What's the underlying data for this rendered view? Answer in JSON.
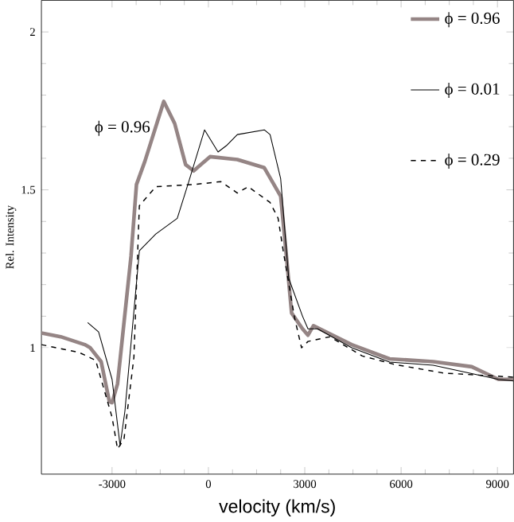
{
  "chart_data": {
    "type": "line",
    "xlabel": "velocity (km/s)",
    "ylabel": "Rel. Intensity",
    "xlim": [
      -5200,
      9500
    ],
    "ylim": [
      0.6,
      2.1
    ],
    "xticks": [
      -3000,
      0,
      3000,
      6000,
      9000
    ],
    "yticks": [
      1,
      1.5,
      2
    ],
    "legend": "top right",
    "annotations": [
      "ϕ = 0.96"
    ],
    "series": [
      {
        "name": "ϕ = 0.96",
        "color": "#958585",
        "line_style": "solid",
        "x": [
          -5200,
          -4600,
          -3850,
          -3680,
          -3340,
          -3085,
          -3000,
          -2830,
          -2410,
          -2240,
          -1980,
          -1390,
          -1050,
          -710,
          -460,
          50,
          900,
          1740,
          2250,
          2420,
          2590,
          2930,
          3100,
          3270,
          4460,
          5640,
          7000,
          8200,
          9030,
          9500
        ],
        "values": [
          1.047,
          1.035,
          1.01,
          1.0,
          0.956,
          0.83,
          0.826,
          0.886,
          1.29,
          1.517,
          1.59,
          1.78,
          1.71,
          1.58,
          1.56,
          1.605,
          1.596,
          1.57,
          1.48,
          1.3,
          1.11,
          1.06,
          1.04,
          1.07,
          1.01,
          0.965,
          0.956,
          0.94,
          0.9,
          0.9
        ]
      },
      {
        "name": "ϕ = 0.01",
        "color": "#000000",
        "line_style": "solid",
        "x": [
          -3760,
          -3420,
          -3000,
          -2750,
          -2600,
          -2150,
          -1640,
          -970,
          -630,
          -120,
          300,
          560,
          900,
          1740,
          1920,
          2250,
          2500,
          2930,
          3100,
          3400,
          4460,
          5640,
          7000,
          9030,
          9500
        ],
        "values": [
          1.08,
          1.05,
          0.9,
          0.69,
          0.8,
          1.307,
          1.36,
          1.41,
          1.52,
          1.69,
          1.62,
          1.64,
          1.675,
          1.69,
          1.675,
          1.535,
          1.22,
          1.1,
          1.06,
          1.06,
          1.0,
          0.955,
          0.945,
          0.9,
          0.895
        ]
      },
      {
        "name": "ϕ = 0.29",
        "color": "#000000",
        "line_style": "dashed",
        "x": [
          -5200,
          -4020,
          -3510,
          -3000,
          -2830,
          -2630,
          -2320,
          -2150,
          -1640,
          -460,
          390,
          900,
          1240,
          1920,
          2170,
          2340,
          2680,
          2900,
          3100,
          3780,
          4790,
          5810,
          7330,
          9500
        ],
        "values": [
          1.01,
          0.985,
          0.96,
          0.78,
          0.68,
          0.71,
          0.97,
          1.45,
          1.51,
          1.517,
          1.526,
          1.49,
          1.51,
          1.46,
          1.41,
          1.3,
          1.096,
          1.0,
          1.02,
          1.035,
          0.974,
          0.947,
          0.92,
          0.907
        ]
      }
    ]
  }
}
